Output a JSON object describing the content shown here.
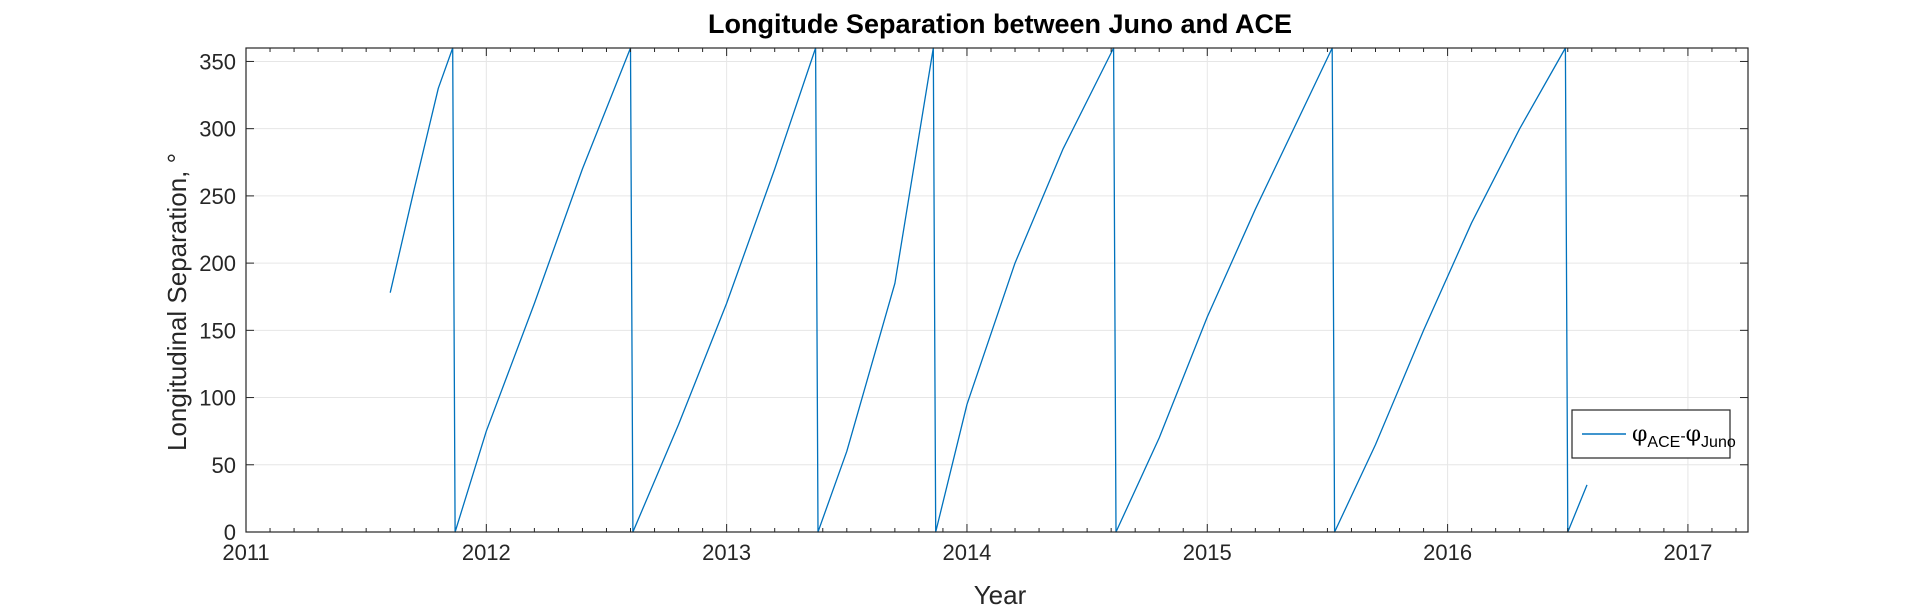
{
  "chart_data": {
    "type": "line",
    "title": "Longitude Separation between Juno and ACE",
    "xlabel": "Year",
    "ylabel": "Longitudinal Separation, °",
    "xlim": [
      2011,
      2017.25
    ],
    "ylim": [
      0,
      360
    ],
    "xticks": [
      2011,
      2012,
      2013,
      2014,
      2015,
      2016,
      2017
    ],
    "yticks": [
      0,
      50,
      100,
      150,
      200,
      250,
      300,
      350
    ],
    "grid": true,
    "legend_position": "lower-right",
    "legend": {
      "symbol_main": "φ",
      "sub1": "ACE",
      "dash": "-",
      "sub2": "Juno"
    },
    "colors": {
      "series": "#0072bd",
      "grid": "#e6e6e6",
      "axis": "#262626"
    },
    "series": [
      {
        "segments": [
          {
            "x": [
              2011.6,
              2011.7,
              2011.8,
              2011.86
            ],
            "y": [
              178,
              255,
              330,
              360
            ]
          },
          {
            "x": [
              2011.87,
              2012.0,
              2012.2,
              2012.4,
              2012.6
            ],
            "y": [
              0,
              75,
              170,
              270,
              360
            ]
          },
          {
            "x": [
              2012.61,
              2012.8,
              2013.0,
              2013.2,
              2013.37
            ],
            "y": [
              0,
              80,
              170,
              270,
              360
            ]
          },
          {
            "x": [
              2013.38,
              2013.5,
              2013.7,
              2013.86
            ],
            "y": [
              0,
              60,
              185,
              360
            ]
          },
          {
            "x": [
              2013.87,
              2014.0,
              2014.2,
              2014.4,
              2014.61
            ],
            "y": [
              0,
              95,
              200,
              285,
              360
            ]
          },
          {
            "x": [
              2014.62,
              2014.8,
              2015.0,
              2015.2,
              2015.52
            ],
            "y": [
              0,
              70,
              160,
              240,
              360
            ]
          },
          {
            "x": [
              2015.53,
              2015.7,
              2015.9,
              2016.1,
              2016.3,
              2016.49
            ],
            "y": [
              0,
              65,
              150,
              230,
              300,
              360
            ]
          },
          {
            "x": [
              2016.5,
              2016.58
            ],
            "y": [
              0,
              35
            ]
          }
        ]
      }
    ]
  }
}
